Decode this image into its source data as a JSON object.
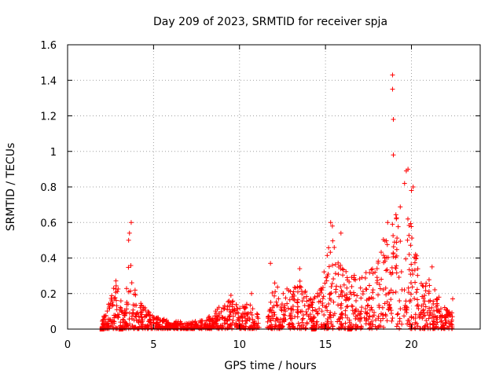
{
  "chart_data": {
    "type": "scatter",
    "title": "Day 209 of 2023, SRMTID for receiver spja",
    "xlabel": "GPS time / hours",
    "ylabel": "SRMTID / TECUs",
    "xlim": [
      0,
      24
    ],
    "ylim": [
      0,
      1.6
    ],
    "grid": true,
    "marker": "+",
    "marker_color": "#ff0000",
    "x_ticks": [
      0,
      5,
      10,
      15,
      20
    ],
    "x_tick_labels": [
      "0",
      "5",
      "10",
      "15",
      "20"
    ],
    "y_ticks": [
      0,
      0.2,
      0.4,
      0.6,
      0.8,
      1.0,
      1.2,
      1.4,
      1.6
    ],
    "y_tick_labels": [
      "0",
      "0.2",
      "0.4",
      "0.6",
      "0.8",
      "1",
      "1.2",
      "1.4",
      "1.6"
    ],
    "zero_markers": [
      2.0,
      3.1,
      14.3,
      16.4
    ],
    "envelope": [
      [
        2.0,
        0.05
      ],
      [
        2.3,
        0.12
      ],
      [
        2.6,
        0.2
      ],
      [
        2.8,
        0.28
      ],
      [
        3.0,
        0.22
      ],
      [
        3.2,
        0.12
      ],
      [
        3.4,
        0.18
      ],
      [
        3.5,
        0.35
      ],
      [
        3.6,
        0.52
      ],
      [
        3.7,
        0.58
      ],
      [
        3.8,
        0.3
      ],
      [
        4.0,
        0.2
      ],
      [
        4.5,
        0.12
      ],
      [
        5.0,
        0.07
      ],
      [
        6.0,
        0.05
      ],
      [
        7.0,
        0.04
      ],
      [
        8.0,
        0.05
      ],
      [
        8.5,
        0.1
      ],
      [
        9.0,
        0.14
      ],
      [
        9.5,
        0.17
      ],
      [
        10.0,
        0.12
      ],
      [
        10.5,
        0.15
      ],
      [
        11.0,
        0.1
      ],
      [
        11.3,
        0.02
      ],
      [
        11.7,
        0.08
      ],
      [
        12.0,
        0.3
      ],
      [
        12.5,
        0.25
      ],
      [
        13.0,
        0.22
      ],
      [
        13.5,
        0.28
      ],
      [
        14.0,
        0.2
      ],
      [
        14.5,
        0.22
      ],
      [
        15.0,
        0.35
      ],
      [
        15.3,
        0.55
      ],
      [
        15.6,
        0.45
      ],
      [
        16.0,
        0.35
      ],
      [
        16.5,
        0.3
      ],
      [
        17.0,
        0.33
      ],
      [
        17.5,
        0.32
      ],
      [
        18.0,
        0.38
      ],
      [
        18.4,
        0.55
      ],
      [
        18.7,
        0.62
      ],
      [
        19.0,
        0.7
      ],
      [
        19.4,
        0.72
      ],
      [
        19.7,
        0.75
      ],
      [
        20.0,
        0.6
      ],
      [
        20.4,
        0.4
      ],
      [
        20.8,
        0.32
      ],
      [
        21.2,
        0.25
      ],
      [
        21.6,
        0.18
      ],
      [
        22.0,
        0.12
      ],
      [
        22.4,
        0.1
      ]
    ],
    "outliers": [
      {
        "x": 18.9,
        "y": 1.43
      },
      {
        "x": 18.9,
        "y": 1.35
      },
      {
        "x": 18.95,
        "y": 1.18
      },
      {
        "x": 18.95,
        "y": 0.98
      },
      {
        "x": 19.8,
        "y": 0.9
      },
      {
        "x": 19.7,
        "y": 0.89
      },
      {
        "x": 19.6,
        "y": 0.82
      },
      {
        "x": 20.0,
        "y": 0.78
      },
      {
        "x": 20.1,
        "y": 0.8
      },
      {
        "x": 3.7,
        "y": 0.6
      },
      {
        "x": 3.6,
        "y": 0.54
      },
      {
        "x": 3.55,
        "y": 0.5
      },
      {
        "x": 15.3,
        "y": 0.6
      },
      {
        "x": 15.4,
        "y": 0.58
      },
      {
        "x": 15.9,
        "y": 0.54
      },
      {
        "x": 11.8,
        "y": 0.37
      },
      {
        "x": 13.5,
        "y": 0.34
      },
      {
        "x": 21.2,
        "y": 0.35
      },
      {
        "x": 22.4,
        "y": 0.17
      },
      {
        "x": 9.5,
        "y": 0.19
      },
      {
        "x": 10.7,
        "y": 0.2
      }
    ]
  }
}
